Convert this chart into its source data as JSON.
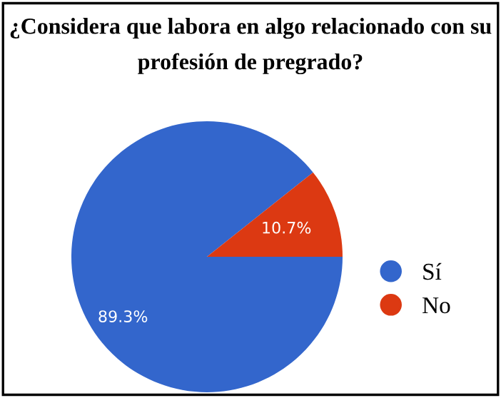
{
  "chart_data": {
    "type": "pie",
    "title": "¿Considera que labora en algo relacionado con su profesión de pregrado?",
    "categories": [
      "Sí",
      "No"
    ],
    "values": [
      89.3,
      10.7
    ],
    "colors": [
      "#3366cc",
      "#dc3912"
    ],
    "value_labels": [
      "89.3%",
      "10.7%"
    ],
    "legend": "right"
  }
}
